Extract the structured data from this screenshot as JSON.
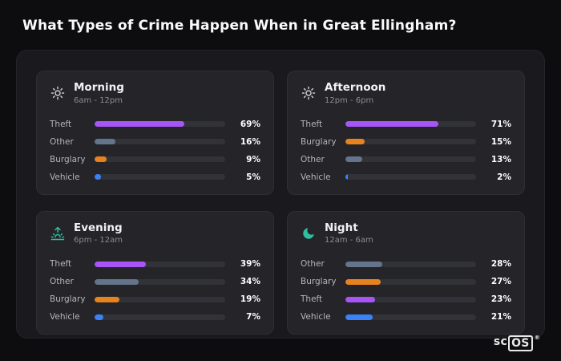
{
  "page": {
    "title": "What Types of Crime Happen When in Great Ellingham?"
  },
  "logo": {
    "prefix": "sc",
    "boxed": "OS",
    "registered": "®"
  },
  "colors": {
    "theft": "#a855f7",
    "other": "#64748b",
    "burglary": "#e8821e",
    "vehicle": "#3b82f6",
    "icon_neutral": "#c9ccd1",
    "icon_accent": "#2fbfa0"
  },
  "chart_data": [
    {
      "type": "bar",
      "title": "Morning",
      "subtitle": "6am - 12pm",
      "icon": "sun-icon",
      "icon_color": "#c9ccd1",
      "categories": [
        "Theft",
        "Other",
        "Burglary",
        "Vehicle"
      ],
      "values": [
        69,
        16,
        9,
        5
      ],
      "unit": "%",
      "xlim": [
        0,
        100
      ]
    },
    {
      "type": "bar",
      "title": "Afternoon",
      "subtitle": "12pm - 6pm",
      "icon": "sun-icon",
      "icon_color": "#c9ccd1",
      "categories": [
        "Theft",
        "Burglary",
        "Other",
        "Vehicle"
      ],
      "values": [
        71,
        15,
        13,
        2
      ],
      "unit": "%",
      "xlim": [
        0,
        100
      ]
    },
    {
      "type": "bar",
      "title": "Evening",
      "subtitle": "6pm - 12am",
      "icon": "sunrise-icon",
      "icon_color": "#2fbfa0",
      "categories": [
        "Theft",
        "Other",
        "Burglary",
        "Vehicle"
      ],
      "values": [
        39,
        34,
        19,
        7
      ],
      "unit": "%",
      "xlim": [
        0,
        100
      ]
    },
    {
      "type": "bar",
      "title": "Night",
      "subtitle": "12am - 6am",
      "icon": "moon-icon",
      "icon_color": "#2fbfa0",
      "categories": [
        "Other",
        "Burglary",
        "Theft",
        "Vehicle"
      ],
      "values": [
        28,
        27,
        23,
        21
      ],
      "unit": "%",
      "xlim": [
        0,
        100
      ]
    }
  ]
}
